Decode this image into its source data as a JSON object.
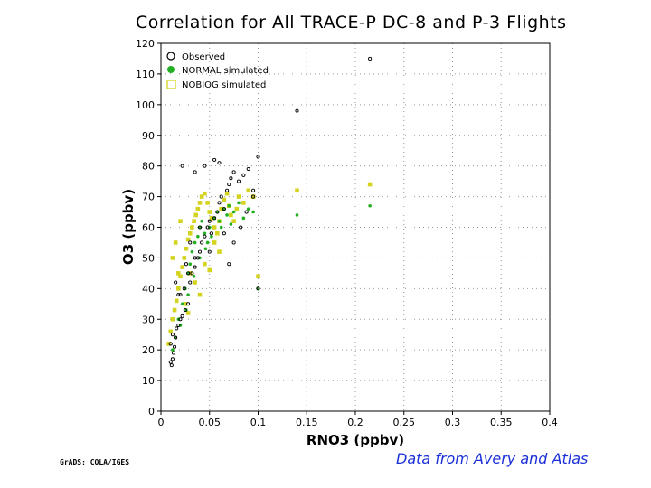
{
  "chart_data": {
    "type": "scatter",
    "title": "Correlation for All TRACE-P DC-8 and P-3 Flights",
    "xlabel": "RNO3 (ppbv)",
    "ylabel": "O3 (ppbv)",
    "xlim": [
      0,
      0.4
    ],
    "ylim": [
      0,
      120
    ],
    "x_ticks": [
      "0",
      "0.05",
      "0.1",
      "0.15",
      "0.2",
      "0.25",
      "0.3",
      "0.35",
      "0.4"
    ],
    "y_ticks": [
      "0",
      "10",
      "20",
      "30",
      "40",
      "50",
      "60",
      "70",
      "80",
      "90",
      "100",
      "110",
      "120"
    ],
    "grid": true,
    "legend_position": "top-left",
    "series": [
      {
        "name": "Observed",
        "marker": "open-circle",
        "color": "#000000",
        "points": [
          [
            0.01,
            16
          ],
          [
            0.011,
            15
          ],
          [
            0.012,
            17
          ],
          [
            0.013,
            19
          ],
          [
            0.01,
            22
          ],
          [
            0.014,
            21
          ],
          [
            0.012,
            25
          ],
          [
            0.015,
            24
          ],
          [
            0.016,
            27
          ],
          [
            0.018,
            28
          ],
          [
            0.02,
            30
          ],
          [
            0.022,
            31
          ],
          [
            0.025,
            33
          ],
          [
            0.028,
            35
          ],
          [
            0.02,
            38
          ],
          [
            0.024,
            40
          ],
          [
            0.03,
            42
          ],
          [
            0.032,
            45
          ],
          [
            0.035,
            47
          ],
          [
            0.026,
            48
          ],
          [
            0.038,
            50
          ],
          [
            0.04,
            52
          ],
          [
            0.042,
            55
          ],
          [
            0.045,
            57
          ],
          [
            0.048,
            60
          ],
          [
            0.05,
            62
          ],
          [
            0.052,
            58
          ],
          [
            0.055,
            63
          ],
          [
            0.058,
            65
          ],
          [
            0.06,
            68
          ],
          [
            0.062,
            70
          ],
          [
            0.065,
            66
          ],
          [
            0.068,
            72
          ],
          [
            0.07,
            74
          ],
          [
            0.072,
            76
          ],
          [
            0.075,
            78
          ],
          [
            0.045,
            80
          ],
          [
            0.022,
            80
          ],
          [
            0.055,
            82
          ],
          [
            0.06,
            81
          ],
          [
            0.035,
            78
          ],
          [
            0.08,
            75
          ],
          [
            0.085,
            77
          ],
          [
            0.09,
            79
          ],
          [
            0.095,
            72
          ],
          [
            0.088,
            65
          ],
          [
            0.082,
            60
          ],
          [
            0.03,
            55
          ],
          [
            0.035,
            50
          ],
          [
            0.028,
            45
          ],
          [
            0.015,
            42
          ],
          [
            0.018,
            38
          ],
          [
            0.04,
            60
          ],
          [
            0.05,
            52
          ],
          [
            0.065,
            58
          ],
          [
            0.07,
            48
          ],
          [
            0.075,
            55
          ],
          [
            0.095,
            70
          ],
          [
            0.1,
            83
          ],
          [
            0.1,
            40
          ],
          [
            0.14,
            98
          ],
          [
            0.215,
            115
          ]
        ]
      },
      {
        "name": "NORMAL simulated",
        "marker": "filled-circle",
        "color": "#22b022",
        "points": [
          [
            0.012,
            20
          ],
          [
            0.015,
            24
          ],
          [
            0.018,
            30
          ],
          [
            0.022,
            35
          ],
          [
            0.025,
            40
          ],
          [
            0.028,
            45
          ],
          [
            0.03,
            48
          ],
          [
            0.032,
            52
          ],
          [
            0.035,
            55
          ],
          [
            0.038,
            57
          ],
          [
            0.04,
            60
          ],
          [
            0.042,
            62
          ],
          [
            0.045,
            58
          ],
          [
            0.048,
            55
          ],
          [
            0.05,
            60
          ],
          [
            0.055,
            63
          ],
          [
            0.058,
            65
          ],
          [
            0.06,
            62
          ],
          [
            0.065,
            66
          ],
          [
            0.068,
            64
          ],
          [
            0.07,
            67
          ],
          [
            0.075,
            65
          ],
          [
            0.08,
            68
          ],
          [
            0.085,
            63
          ],
          [
            0.09,
            66
          ],
          [
            0.095,
            65
          ],
          [
            0.028,
            38
          ],
          [
            0.034,
            44
          ],
          [
            0.04,
            50
          ],
          [
            0.046,
            53
          ],
          [
            0.052,
            57
          ],
          [
            0.062,
            60
          ],
          [
            0.072,
            61
          ],
          [
            0.02,
            28
          ],
          [
            0.026,
            33
          ],
          [
            0.14,
            64
          ],
          [
            0.215,
            67
          ],
          [
            0.1,
            40
          ]
        ]
      },
      {
        "name": "NOBIOG simulated",
        "marker": "open-square",
        "color": "#d4d420",
        "points": [
          [
            0.008,
            22
          ],
          [
            0.01,
            26
          ],
          [
            0.012,
            30
          ],
          [
            0.014,
            33
          ],
          [
            0.016,
            36
          ],
          [
            0.018,
            40
          ],
          [
            0.02,
            44
          ],
          [
            0.022,
            47
          ],
          [
            0.024,
            50
          ],
          [
            0.026,
            53
          ],
          [
            0.028,
            56
          ],
          [
            0.03,
            58
          ],
          [
            0.032,
            60
          ],
          [
            0.034,
            62
          ],
          [
            0.036,
            64
          ],
          [
            0.038,
            66
          ],
          [
            0.04,
            68
          ],
          [
            0.042,
            70
          ],
          [
            0.045,
            71
          ],
          [
            0.048,
            68
          ],
          [
            0.05,
            65
          ],
          [
            0.052,
            63
          ],
          [
            0.055,
            60
          ],
          [
            0.058,
            58
          ],
          [
            0.06,
            62
          ],
          [
            0.062,
            66
          ],
          [
            0.065,
            69
          ],
          [
            0.068,
            71
          ],
          [
            0.07,
            67
          ],
          [
            0.072,
            64
          ],
          [
            0.075,
            62
          ],
          [
            0.078,
            66
          ],
          [
            0.08,
            70
          ],
          [
            0.085,
            68
          ],
          [
            0.09,
            72
          ],
          [
            0.095,
            70
          ],
          [
            0.03,
            45
          ],
          [
            0.035,
            42
          ],
          [
            0.04,
            38
          ],
          [
            0.025,
            35
          ],
          [
            0.028,
            32
          ],
          [
            0.02,
            62
          ],
          [
            0.015,
            55
          ],
          [
            0.012,
            50
          ],
          [
            0.018,
            45
          ],
          [
            0.1,
            44
          ],
          [
            0.14,
            72
          ],
          [
            0.215,
            74
          ],
          [
            0.055,
            55
          ],
          [
            0.06,
            52
          ],
          [
            0.045,
            48
          ],
          [
            0.05,
            46
          ]
        ]
      }
    ]
  },
  "footer": {
    "credit": "Data from Avery and Atlas",
    "software": "GrADS: COLA/IGES"
  }
}
